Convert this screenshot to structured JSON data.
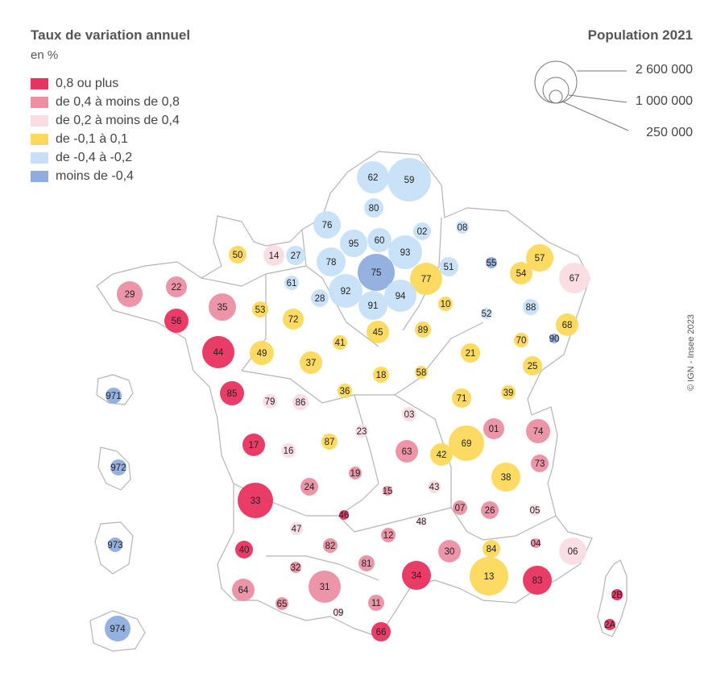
{
  "title": "Taux de variation annuel",
  "subtitle": "en %",
  "legend": [
    {
      "label": "0,8 ou plus",
      "color": "#e8325f"
    },
    {
      "label": "de 0,4 à moins de 0,8",
      "color": "#ec8fa3"
    },
    {
      "label": "de 0,2 à moins de 0,4",
      "color": "#fbdce3"
    },
    {
      "label": "de -0,1 à 0,1",
      "color": "#fdd85a"
    },
    {
      "label": "de -0,4 à  -0,2",
      "color": "#c7e0f8"
    },
    {
      "label": "moins de -0,4",
      "color": "#8eadde"
    }
  ],
  "population": {
    "title": "Population 2021",
    "labels": [
      "2 600 000",
      "1 000 000",
      "250 000"
    ]
  },
  "source": "© IGN - Insee 2023",
  "departments": [
    {
      "code": "62",
      "cls": 4
    },
    {
      "code": "59",
      "cls": 4
    },
    {
      "code": "80",
      "cls": 4
    },
    {
      "code": "76",
      "cls": 4
    },
    {
      "code": "02",
      "cls": 4
    },
    {
      "code": "08",
      "cls": 4
    },
    {
      "code": "60",
      "cls": 4
    },
    {
      "code": "95",
      "cls": 4
    },
    {
      "code": "93",
      "cls": 4
    },
    {
      "code": "50",
      "cls": 3
    },
    {
      "code": "14",
      "cls": 2
    },
    {
      "code": "27",
      "cls": 4
    },
    {
      "code": "78",
      "cls": 4
    },
    {
      "code": "75",
      "cls": 5
    },
    {
      "code": "77",
      "cls": 3
    },
    {
      "code": "51",
      "cls": 4
    },
    {
      "code": "55",
      "cls": 5
    },
    {
      "code": "57",
      "cls": 3
    },
    {
      "code": "54",
      "cls": 3
    },
    {
      "code": "67",
      "cls": 2
    },
    {
      "code": "29",
      "cls": 1
    },
    {
      "code": "22",
      "cls": 1
    },
    {
      "code": "35",
      "cls": 1
    },
    {
      "code": "61",
      "cls": 4
    },
    {
      "code": "92",
      "cls": 4
    },
    {
      "code": "94",
      "cls": 4
    },
    {
      "code": "91",
      "cls": 4
    },
    {
      "code": "28",
      "cls": 4
    },
    {
      "code": "10",
      "cls": 3
    },
    {
      "code": "52",
      "cls": 4
    },
    {
      "code": "88",
      "cls": 4
    },
    {
      "code": "68",
      "cls": 3
    },
    {
      "code": "56",
      "cls": 0
    },
    {
      "code": "53",
      "cls": 3
    },
    {
      "code": "72",
      "cls": 3
    },
    {
      "code": "45",
      "cls": 3
    },
    {
      "code": "89",
      "cls": 3
    },
    {
      "code": "70",
      "cls": 3
    },
    {
      "code": "90",
      "cls": 5
    },
    {
      "code": "44",
      "cls": 0
    },
    {
      "code": "49",
      "cls": 3
    },
    {
      "code": "41",
      "cls": 3
    },
    {
      "code": "37",
      "cls": 3
    },
    {
      "code": "21",
      "cls": 3
    },
    {
      "code": "25",
      "cls": 3
    },
    {
      "code": "18",
      "cls": 3
    },
    {
      "code": "58",
      "cls": 3
    },
    {
      "code": "85",
      "cls": 0
    },
    {
      "code": "79",
      "cls": 2
    },
    {
      "code": "86",
      "cls": 2
    },
    {
      "code": "36",
      "cls": 3
    },
    {
      "code": "71",
      "cls": 3
    },
    {
      "code": "39",
      "cls": 3
    },
    {
      "code": "03",
      "cls": 2
    },
    {
      "code": "01",
      "cls": 1
    },
    {
      "code": "74",
      "cls": 1
    },
    {
      "code": "17",
      "cls": 0
    },
    {
      "code": "16",
      "cls": 2
    },
    {
      "code": "87",
      "cls": 3
    },
    {
      "code": "23",
      "cls": 2
    },
    {
      "code": "63",
      "cls": 1
    },
    {
      "code": "42",
      "cls": 3
    },
    {
      "code": "69",
      "cls": 3
    },
    {
      "code": "73",
      "cls": 1
    },
    {
      "code": "19",
      "cls": 1
    },
    {
      "code": "38",
      "cls": 3
    },
    {
      "code": "24",
      "cls": 1
    },
    {
      "code": "15",
      "cls": 1
    },
    {
      "code": "43",
      "cls": 2
    },
    {
      "code": "33",
      "cls": 0
    },
    {
      "code": "46",
      "cls": 0
    },
    {
      "code": "07",
      "cls": 1
    },
    {
      "code": "26",
      "cls": 1
    },
    {
      "code": "05",
      "cls": 2
    },
    {
      "code": "47",
      "cls": 2
    },
    {
      "code": "12",
      "cls": 1
    },
    {
      "code": "48",
      "cls": 2
    },
    {
      "code": "04",
      "cls": 1
    },
    {
      "code": "40",
      "cls": 0
    },
    {
      "code": "82",
      "cls": 1
    },
    {
      "code": "30",
      "cls": 1
    },
    {
      "code": "84",
      "cls": 3
    },
    {
      "code": "06",
      "cls": 2
    },
    {
      "code": "32",
      "cls": 1
    },
    {
      "code": "81",
      "cls": 1
    },
    {
      "code": "34",
      "cls": 0
    },
    {
      "code": "13",
      "cls": 3
    },
    {
      "code": "83",
      "cls": 0
    },
    {
      "code": "64",
      "cls": 1
    },
    {
      "code": "31",
      "cls": 1
    },
    {
      "code": "11",
      "cls": 1
    },
    {
      "code": "65",
      "cls": 1
    },
    {
      "code": "09",
      "cls": 2
    },
    {
      "code": "66",
      "cls": 0
    },
    {
      "code": "2B",
      "cls": 0
    },
    {
      "code": "2A",
      "cls": 0
    },
    {
      "code": "971",
      "cls": 5
    },
    {
      "code": "972",
      "cls": 5
    },
    {
      "code": "973",
      "cls": 5
    },
    {
      "code": "974",
      "cls": 5
    }
  ]
}
